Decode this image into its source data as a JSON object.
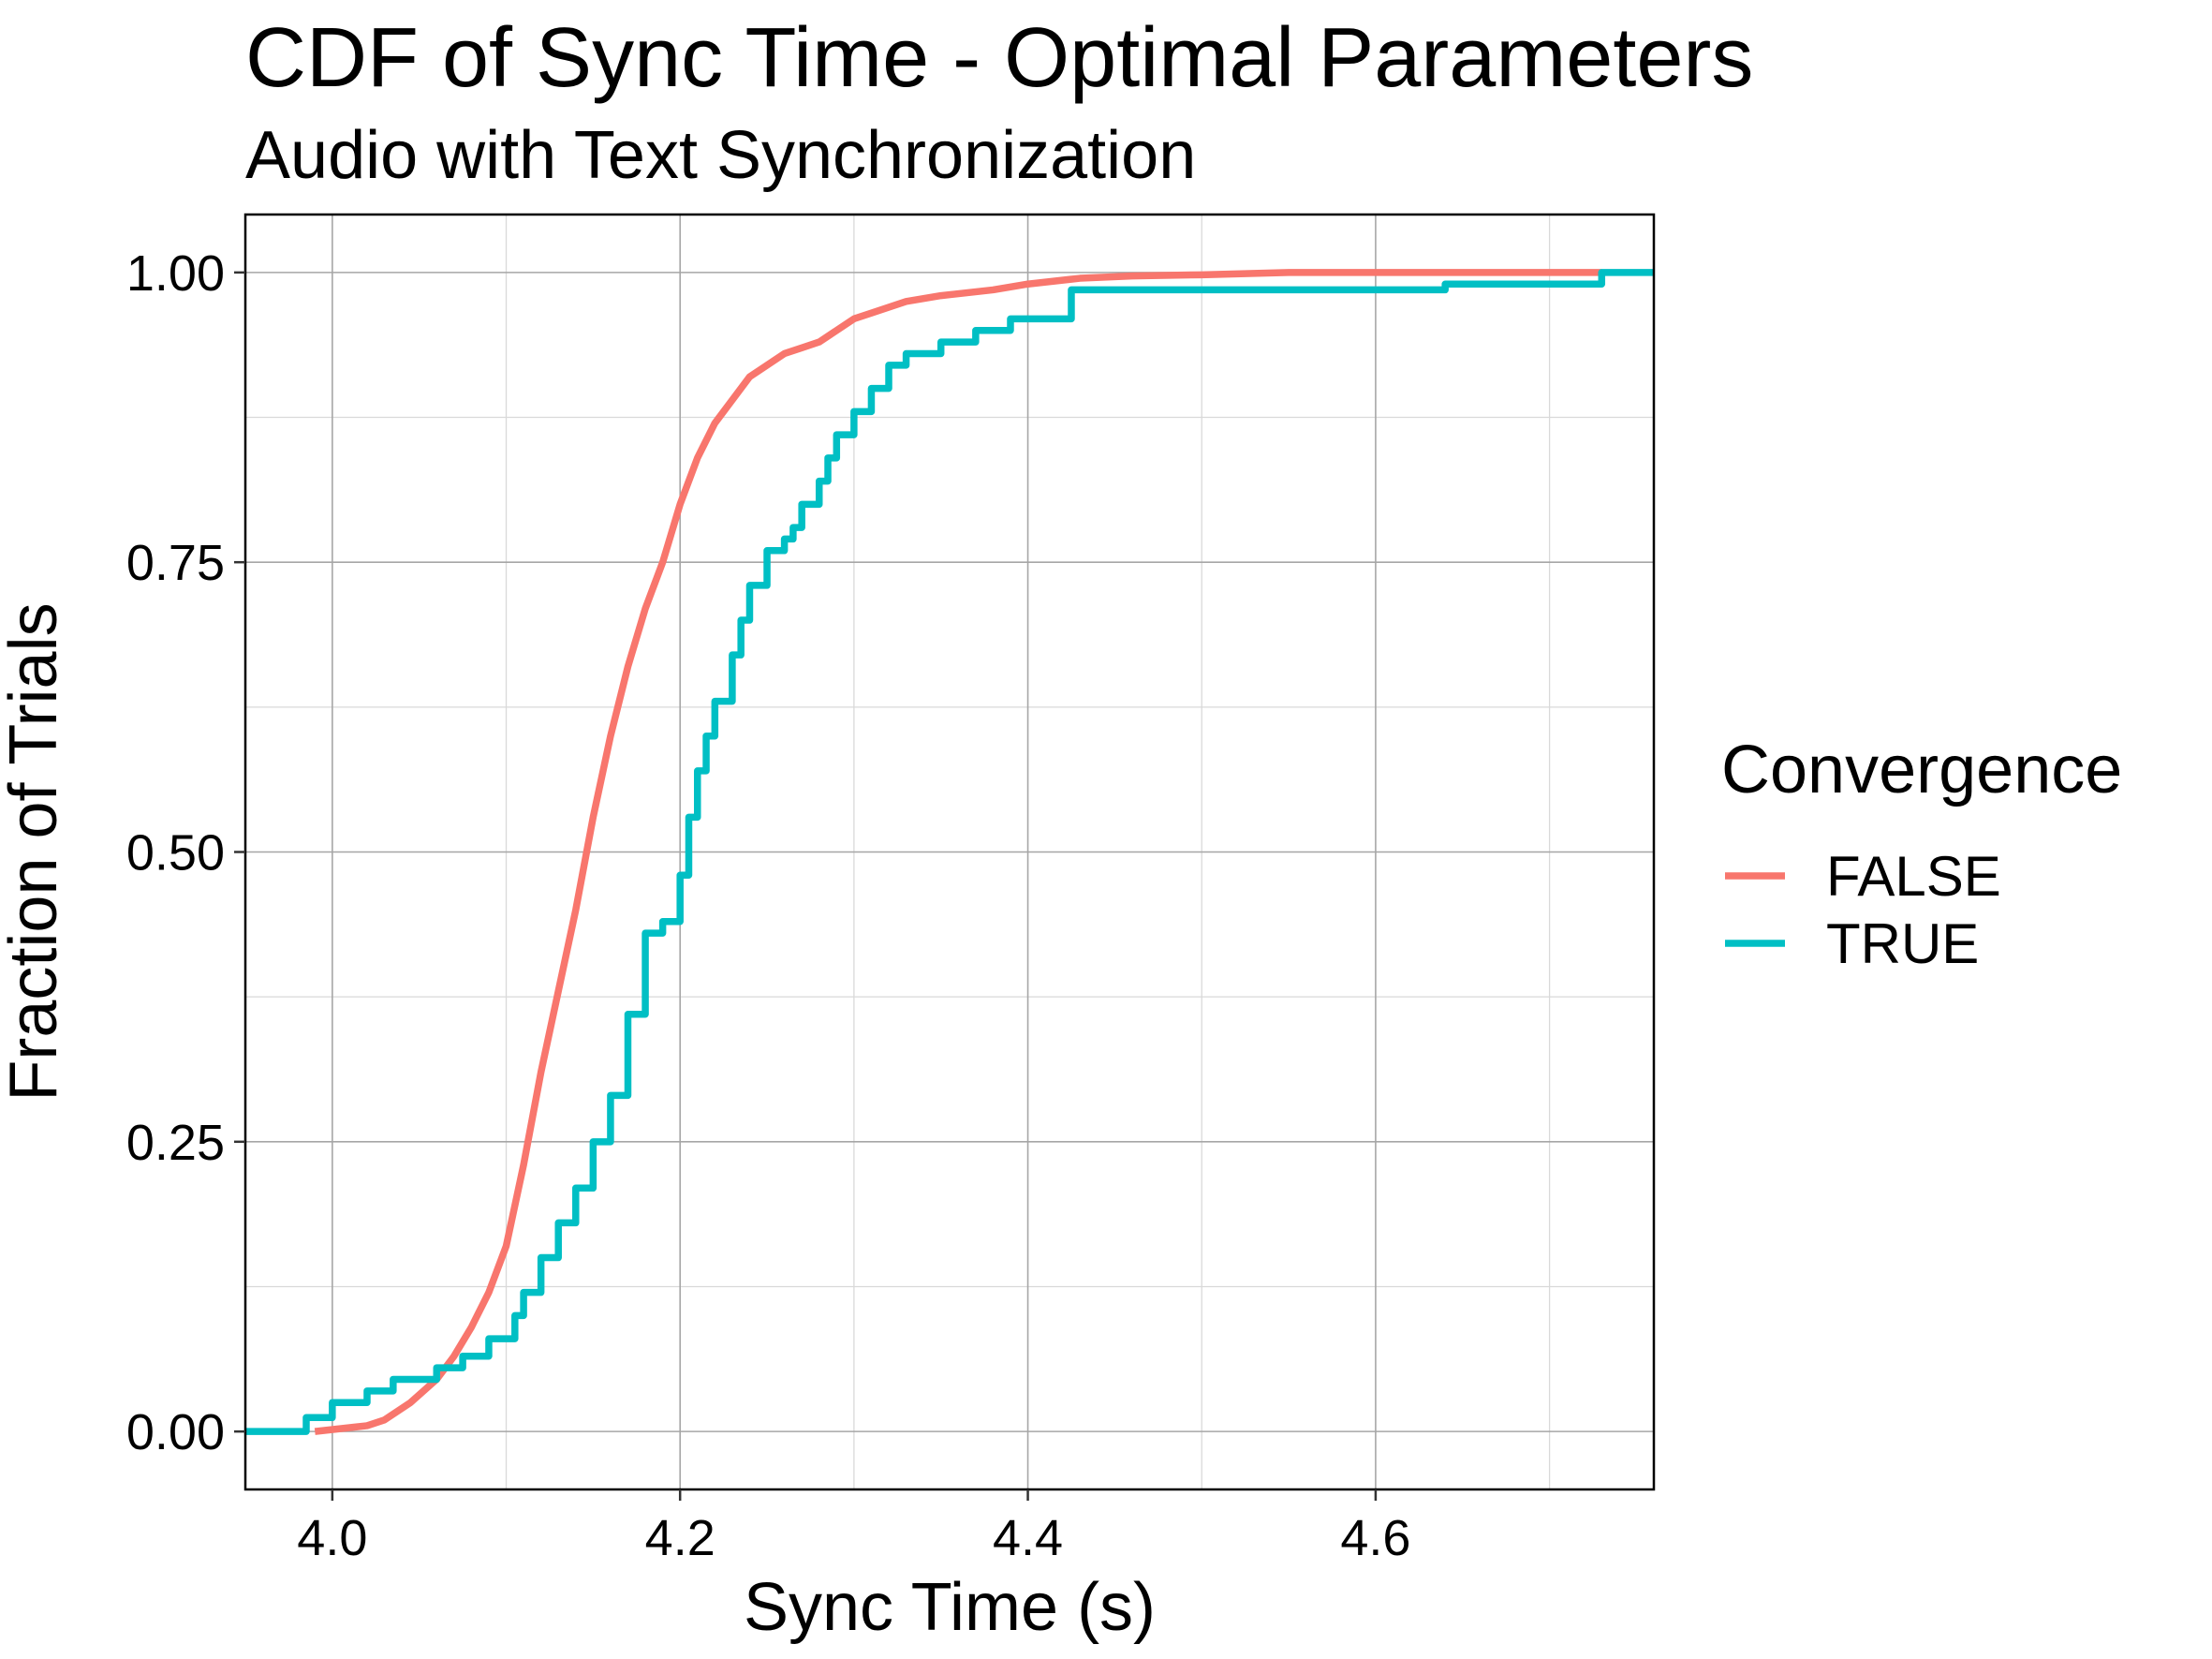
{
  "chart_data": {
    "type": "line",
    "title": "CDF of Sync Time - Optimal Parameters",
    "subtitle": "Audio with Text Synchronization",
    "xlabel": "Sync Time (s)",
    "ylabel": "Fraction of Trials",
    "xlim": [
      3.95,
      4.76
    ],
    "ylim": [
      -0.05,
      1.05
    ],
    "x_ticks": [
      4.0,
      4.2,
      4.4,
      4.6
    ],
    "x_tick_labels": [
      "4.0",
      "4.2",
      "4.4",
      "4.6"
    ],
    "y_ticks": [
      0.0,
      0.25,
      0.5,
      0.75,
      1.0
    ],
    "y_tick_labels": [
      "0.00",
      "0.25",
      "0.50",
      "0.75",
      "1.00"
    ],
    "grid": true,
    "legend": {
      "title": "Convergence",
      "position": "right"
    },
    "series": [
      {
        "name": "FALSE",
        "color": "#F8766D",
        "step": false,
        "x": [
          3.99,
          4.02,
          4.03,
          4.045,
          4.06,
          4.07,
          4.08,
          4.09,
          4.1,
          4.11,
          4.12,
          4.13,
          4.14,
          4.15,
          4.16,
          4.17,
          4.18,
          4.19,
          4.2,
          4.21,
          4.22,
          4.23,
          4.24,
          4.25,
          4.26,
          4.27,
          4.28,
          4.29,
          4.3,
          4.31,
          4.33,
          4.35,
          4.38,
          4.4,
          4.43,
          4.46,
          4.5,
          4.55,
          4.6,
          4.73
        ],
        "y": [
          0.0,
          0.005,
          0.01,
          0.025,
          0.045,
          0.065,
          0.09,
          0.12,
          0.16,
          0.23,
          0.31,
          0.38,
          0.45,
          0.53,
          0.6,
          0.66,
          0.71,
          0.75,
          0.8,
          0.84,
          0.87,
          0.89,
          0.91,
          0.92,
          0.93,
          0.935,
          0.94,
          0.95,
          0.96,
          0.965,
          0.975,
          0.98,
          0.985,
          0.99,
          0.995,
          0.997,
          0.998,
          1.0,
          1.0,
          1.0
        ]
      },
      {
        "name": "TRUE",
        "color": "#00BFC4",
        "step": true,
        "x": [
          3.95,
          3.985,
          4.0,
          4.02,
          4.035,
          4.06,
          4.075,
          4.09,
          4.105,
          4.11,
          4.12,
          4.13,
          4.14,
          4.15,
          4.16,
          4.17,
          4.18,
          4.19,
          4.2,
          4.205,
          4.21,
          4.215,
          4.22,
          4.23,
          4.235,
          4.24,
          4.25,
          4.26,
          4.265,
          4.27,
          4.28,
          4.285,
          4.29,
          4.3,
          4.31,
          4.32,
          4.33,
          4.35,
          4.37,
          4.39,
          4.425,
          4.64,
          4.73,
          4.76
        ],
        "y": [
          0.0,
          0.012,
          0.025,
          0.035,
          0.045,
          0.055,
          0.065,
          0.08,
          0.1,
          0.12,
          0.15,
          0.18,
          0.21,
          0.25,
          0.29,
          0.36,
          0.43,
          0.44,
          0.48,
          0.53,
          0.57,
          0.6,
          0.63,
          0.67,
          0.7,
          0.73,
          0.76,
          0.77,
          0.78,
          0.8,
          0.82,
          0.84,
          0.86,
          0.88,
          0.9,
          0.92,
          0.93,
          0.94,
          0.95,
          0.96,
          0.985,
          0.99,
          1.0,
          1.0
        ]
      }
    ]
  }
}
